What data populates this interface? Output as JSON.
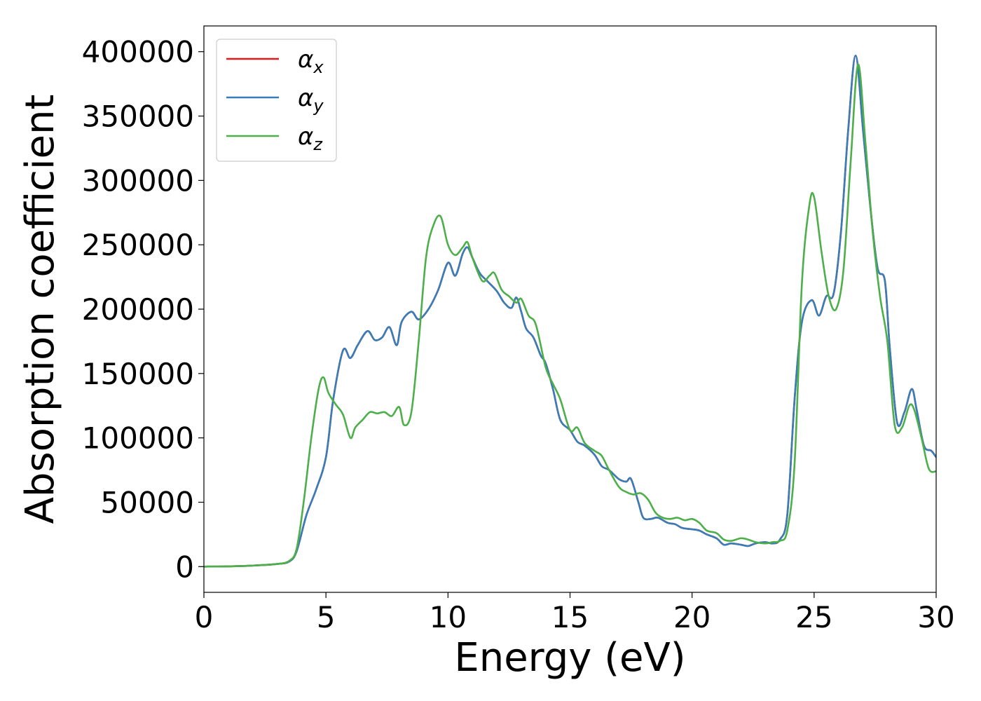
{
  "chart_data": {
    "type": "line",
    "title": "",
    "xlabel": "Energy (eV)",
    "ylabel": "Absorption coefficient",
    "xlim": [
      0,
      30
    ],
    "ylim": [
      -20000,
      420000
    ],
    "xticks": [
      0,
      5,
      10,
      15,
      20,
      25,
      30
    ],
    "xtick_labels": [
      "0",
      "5",
      "10",
      "15",
      "20",
      "25",
      "30"
    ],
    "yticks": [
      0,
      50000,
      100000,
      150000,
      200000,
      250000,
      300000,
      350000,
      400000
    ],
    "ytick_labels": [
      "0",
      "50000",
      "100000",
      "150000",
      "200000",
      "250000",
      "300000",
      "350000",
      "400000"
    ],
    "grid": false,
    "legend_position": "top-left",
    "series": [
      {
        "name": "αx",
        "base": "α",
        "sub": "x",
        "color": "#e41a1c",
        "x": [
          0,
          1,
          2,
          3,
          3.5,
          3.8,
          4.2,
          4.6,
          5.0,
          5.3,
          5.7,
          6.0,
          6.3,
          6.7,
          7.0,
          7.3,
          7.6,
          7.9,
          8.1,
          8.5,
          8.8,
          9.2,
          9.6,
          10.0,
          10.3,
          10.6,
          10.8,
          11.0,
          11.3,
          11.6,
          12.0,
          12.3,
          12.6,
          12.8,
          13.0,
          13.2,
          13.5,
          13.8,
          14.0,
          14.3,
          14.6,
          15.0,
          15.3,
          15.6,
          16.0,
          16.3,
          16.6,
          17.0,
          17.3,
          17.5,
          17.8,
          18.0,
          18.3,
          18.6,
          19.0,
          19.3,
          19.6,
          20.0,
          20.3,
          20.6,
          21.0,
          21.3,
          21.6,
          22.0,
          22.3,
          22.6,
          23.0,
          23.3,
          23.6,
          23.9,
          24.2,
          24.5,
          24.9,
          25.2,
          25.5,
          25.8,
          26.1,
          26.4,
          26.7,
          27.0,
          27.3,
          27.6,
          27.9,
          28.1,
          28.4,
          28.7,
          29.0,
          29.2,
          29.5,
          29.8,
          30.0
        ],
        "y": [
          0,
          200,
          800,
          2000,
          4000,
          12000,
          40000,
          60000,
          85000,
          130000,
          168000,
          162000,
          172000,
          183000,
          176000,
          178000,
          186000,
          172000,
          190000,
          198000,
          192000,
          200000,
          215000,
          236000,
          226000,
          243000,
          248000,
          240000,
          228000,
          222000,
          214000,
          205000,
          201000,
          209000,
          198000,
          185000,
          178000,
          164000,
          158000,
          138000,
          114000,
          106000,
          97000,
          94000,
          87000,
          78000,
          75000,
          68000,
          66000,
          68000,
          50000,
          38000,
          37000,
          38000,
          34000,
          33000,
          30000,
          29000,
          28000,
          25000,
          22000,
          17000,
          18000,
          17000,
          16000,
          18000,
          19000,
          18000,
          21000,
          40000,
          130000,
          190000,
          207000,
          195000,
          210000,
          212000,
          260000,
          340000,
          397000,
          340000,
          280000,
          232000,
          222000,
          170000,
          112000,
          120000,
          138000,
          122000,
          94000,
          90000,
          85000
        ]
      },
      {
        "name": "αy",
        "base": "α",
        "sub": "y",
        "color": "#377eb8",
        "x": [
          0,
          1,
          2,
          3,
          3.5,
          3.8,
          4.2,
          4.6,
          5.0,
          5.3,
          5.7,
          6.0,
          6.3,
          6.7,
          7.0,
          7.3,
          7.6,
          7.9,
          8.1,
          8.5,
          8.8,
          9.2,
          9.6,
          10.0,
          10.3,
          10.6,
          10.8,
          11.0,
          11.3,
          11.6,
          12.0,
          12.3,
          12.6,
          12.8,
          13.0,
          13.2,
          13.5,
          13.8,
          14.0,
          14.3,
          14.6,
          15.0,
          15.3,
          15.6,
          16.0,
          16.3,
          16.6,
          17.0,
          17.3,
          17.5,
          17.8,
          18.0,
          18.3,
          18.6,
          19.0,
          19.3,
          19.6,
          20.0,
          20.3,
          20.6,
          21.0,
          21.3,
          21.6,
          22.0,
          22.3,
          22.6,
          23.0,
          23.3,
          23.6,
          23.9,
          24.2,
          24.5,
          24.9,
          25.2,
          25.5,
          25.8,
          26.1,
          26.4,
          26.7,
          27.0,
          27.3,
          27.6,
          27.9,
          28.1,
          28.4,
          28.7,
          29.0,
          29.2,
          29.5,
          29.8,
          30.0
        ],
        "y": [
          0,
          200,
          800,
          2000,
          4000,
          12000,
          40000,
          60000,
          85000,
          130000,
          168000,
          162000,
          172000,
          183000,
          176000,
          178000,
          186000,
          172000,
          190000,
          198000,
          192000,
          200000,
          215000,
          236000,
          226000,
          243000,
          248000,
          240000,
          228000,
          222000,
          214000,
          205000,
          201000,
          209000,
          198000,
          185000,
          178000,
          164000,
          158000,
          138000,
          114000,
          106000,
          97000,
          94000,
          87000,
          78000,
          75000,
          68000,
          66000,
          68000,
          50000,
          38000,
          37000,
          38000,
          34000,
          33000,
          30000,
          29000,
          28000,
          25000,
          22000,
          17000,
          18000,
          17000,
          16000,
          18000,
          19000,
          18000,
          21000,
          40000,
          130000,
          190000,
          207000,
          195000,
          210000,
          212000,
          260000,
          340000,
          397000,
          340000,
          280000,
          232000,
          222000,
          170000,
          112000,
          120000,
          138000,
          122000,
          94000,
          90000,
          85000
        ]
      },
      {
        "name": "αz",
        "base": "α",
        "sub": "z",
        "color": "#4daf4a",
        "x": [
          0,
          1,
          2,
          3,
          3.5,
          3.8,
          4.1,
          4.4,
          4.7,
          4.9,
          5.1,
          5.4,
          5.7,
          6.0,
          6.2,
          6.5,
          6.8,
          7.1,
          7.4,
          7.7,
          8.0,
          8.2,
          8.5,
          8.8,
          9.1,
          9.4,
          9.7,
          10.0,
          10.3,
          10.6,
          10.8,
          11.0,
          11.4,
          11.7,
          11.9,
          12.2,
          12.5,
          12.8,
          13.0,
          13.3,
          13.6,
          14.0,
          14.3,
          14.6,
          15.0,
          15.3,
          15.6,
          16.0,
          16.3,
          16.6,
          17.0,
          17.3,
          17.6,
          17.9,
          18.2,
          18.5,
          18.8,
          19.1,
          19.4,
          19.7,
          20.0,
          20.3,
          20.6,
          21.0,
          21.3,
          21.6,
          22.0,
          22.3,
          22.6,
          23.0,
          23.3,
          23.6,
          23.9,
          24.2,
          24.5,
          24.8,
          25.0,
          25.3,
          25.6,
          25.9,
          26.2,
          26.5,
          26.8,
          27.1,
          27.4,
          27.7,
          28.0,
          28.3,
          28.6,
          28.9,
          29.1,
          29.4,
          29.7,
          30.0
        ],
        "y": [
          0,
          200,
          800,
          2000,
          4500,
          14000,
          52000,
          100000,
          138000,
          147000,
          135000,
          126000,
          118000,
          100000,
          108000,
          114000,
          120000,
          119000,
          120000,
          117000,
          124000,
          110000,
          120000,
          175000,
          240000,
          265000,
          272000,
          250000,
          242000,
          248000,
          252000,
          240000,
          222000,
          226000,
          228000,
          215000,
          210000,
          205000,
          208000,
          195000,
          188000,
          155000,
          142000,
          130000,
          106000,
          108000,
          96000,
          90000,
          86000,
          75000,
          62000,
          58000,
          56000,
          57000,
          52000,
          42000,
          38000,
          37000,
          38000,
          36000,
          37000,
          34000,
          28000,
          26000,
          21000,
          20000,
          22000,
          21000,
          19000,
          18000,
          19000,
          20000,
          28000,
          80000,
          220000,
          280000,
          287000,
          245000,
          210000,
          200000,
          230000,
          315000,
          390000,
          330000,
          260000,
          210000,
          175000,
          110000,
          108000,
          125000,
          122000,
          100000,
          76000,
          74000
        ]
      }
    ]
  }
}
